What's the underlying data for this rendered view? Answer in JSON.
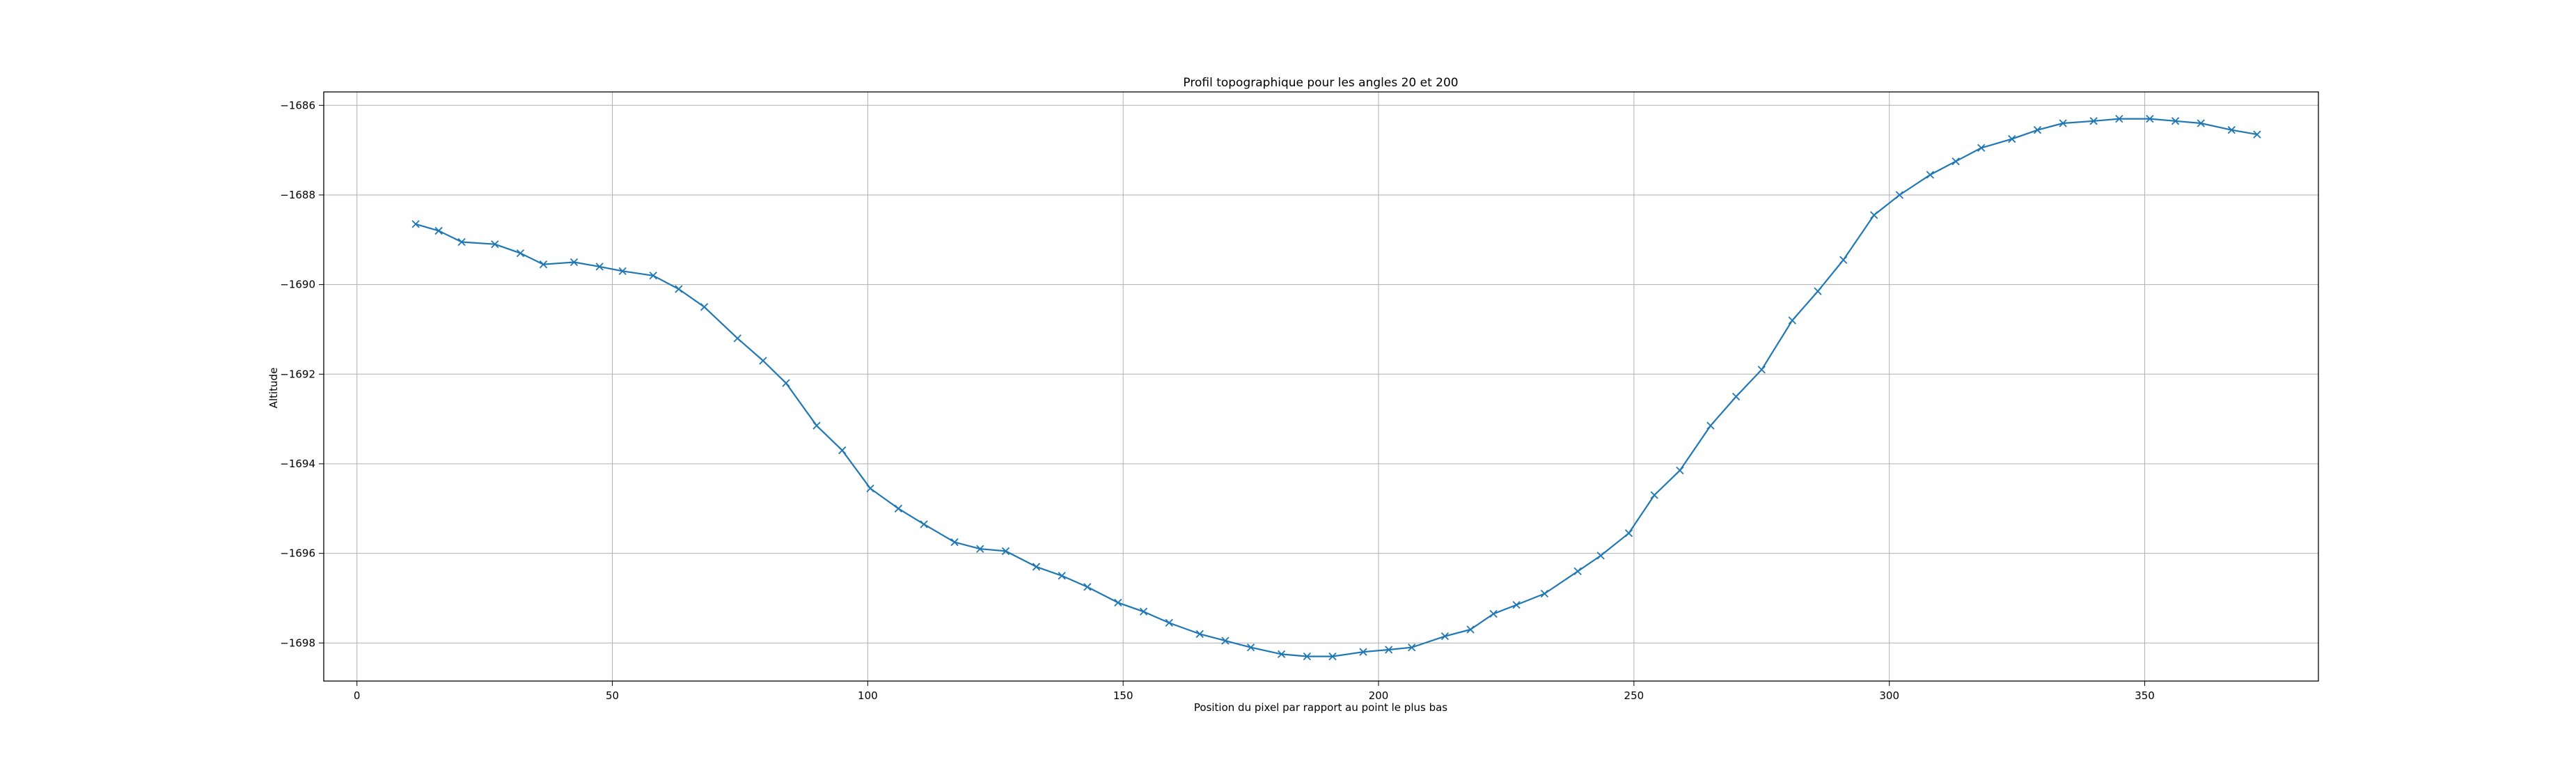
{
  "chart_data": {
    "type": "line",
    "title": "Profil topographique pour les angles 20 et 200",
    "xlabel": "Position du pixel par rapport au point le plus bas",
    "ylabel": "Altitude",
    "xlim": [
      -6.5,
      384
    ],
    "ylim": [
      -1698.85,
      -1685.7
    ],
    "xticks": [
      0,
      50,
      100,
      150,
      200,
      250,
      300,
      350
    ],
    "yticks": [
      -1698,
      -1696,
      -1694,
      -1692,
      -1690,
      -1688,
      -1686
    ],
    "grid": true,
    "marker": "x",
    "series": [
      {
        "color": "#1f77b4",
        "x": [
          11.5,
          16,
          20.5,
          27,
          32,
          36.5,
          42.5,
          47.5,
          52,
          58,
          63,
          68,
          74.5,
          79.5,
          84,
          90,
          95,
          100.5,
          106,
          111,
          117,
          122,
          127,
          133,
          138,
          143,
          149,
          154,
          159,
          165,
          170,
          175,
          181,
          186,
          191,
          197,
          202,
          206.5,
          213,
          218,
          222.5,
          227,
          232.5,
          239,
          243.5,
          249,
          254,
          259,
          265,
          270,
          275,
          281,
          286,
          291,
          297,
          302,
          308,
          313,
          318,
          324,
          329,
          334,
          340,
          345,
          351,
          356,
          361,
          367,
          372
        ],
        "y": [
          -1688.65,
          -1688.8,
          -1689.05,
          -1689.1,
          -1689.3,
          -1689.55,
          -1689.5,
          -1689.6,
          -1689.7,
          -1689.8,
          -1690.1,
          -1690.5,
          -1691.2,
          -1691.7,
          -1692.2,
          -1693.15,
          -1693.7,
          -1694.55,
          -1695.0,
          -1695.35,
          -1695.75,
          -1695.9,
          -1695.95,
          -1696.3,
          -1696.5,
          -1696.75,
          -1697.1,
          -1697.3,
          -1697.55,
          -1697.8,
          -1697.95,
          -1698.1,
          -1698.25,
          -1698.3,
          -1698.3,
          -1698.2,
          -1698.15,
          -1698.1,
          -1697.85,
          -1697.7,
          -1697.35,
          -1697.15,
          -1696.9,
          -1696.4,
          -1696.05,
          -1695.55,
          -1694.7,
          -1694.15,
          -1693.15,
          -1692.5,
          -1691.9,
          -1690.8,
          -1690.15,
          -1689.45,
          -1688.45,
          -1688.0,
          -1687.55,
          -1687.25,
          -1686.95,
          -1686.75,
          -1686.55,
          -1686.4,
          -1686.35,
          -1686.3,
          -1686.3,
          -1686.35,
          -1686.4,
          -1686.55,
          -1686.65
        ]
      }
    ]
  }
}
